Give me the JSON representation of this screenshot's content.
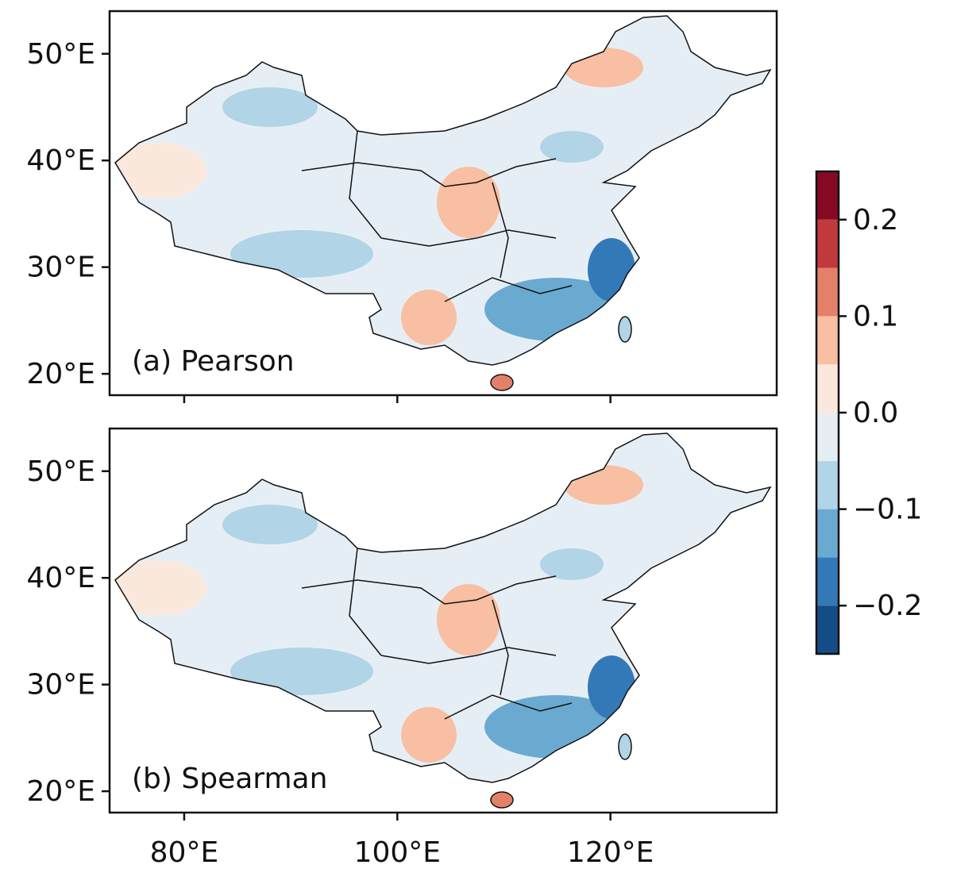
{
  "chart_data": {
    "type": "contour-map",
    "panels": [
      {
        "label": "(a) Pearson"
      },
      {
        "label": "(b) Spearman"
      }
    ],
    "xlim": [
      73,
      135.6
    ],
    "xticks": [
      {
        "value": 80,
        "label": "80°E"
      },
      {
        "value": 100,
        "label": "100°E"
      },
      {
        "value": 120,
        "label": "120°E"
      }
    ],
    "ylim": [
      18,
      54
    ],
    "yticks": [
      {
        "value": 20,
        "label": "20°E"
      },
      {
        "value": 30,
        "label": "30°E"
      },
      {
        "value": 40,
        "label": "40°E"
      },
      {
        "value": 50,
        "label": "50°E"
      }
    ],
    "colorbar": {
      "bounds": [
        -0.25,
        -0.2,
        -0.15,
        -0.1,
        -0.05,
        0,
        0.05,
        0.1,
        0.15,
        0.2,
        0.25
      ],
      "colors": [
        "#144c87",
        "#3479b7",
        "#6aaad1",
        "#b1d4e6",
        "#e6eef5",
        "#fbe8dd",
        "#f8bfa2",
        "#e38069",
        "#c0393d",
        "#870a24"
      ],
      "ticks": [
        {
          "value": -0.2,
          "label": "−0.2"
        },
        {
          "value": -0.1,
          "label": "−0.1"
        },
        {
          "value": 0,
          "label": "0.0"
        },
        {
          "value": 0.1,
          "label": "0.1"
        },
        {
          "value": 0.2,
          "label": "0.2"
        }
      ]
    }
  }
}
